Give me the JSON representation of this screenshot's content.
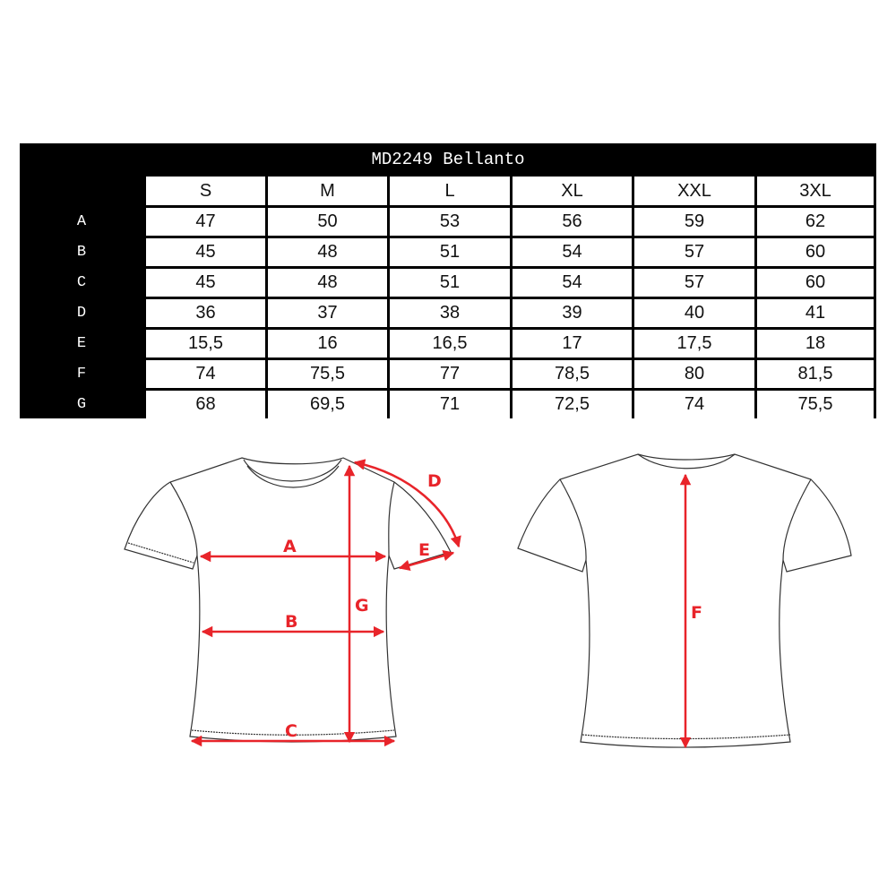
{
  "title": "MD2249 Bellanto",
  "sizes": [
    "S",
    "M",
    "L",
    "XL",
    "XXL",
    "3XL"
  ],
  "rows": [
    {
      "label": "A",
      "values": [
        "47",
        "50",
        "53",
        "56",
        "59",
        "62"
      ]
    },
    {
      "label": "B",
      "values": [
        "45",
        "48",
        "51",
        "54",
        "57",
        "60"
      ]
    },
    {
      "label": "C",
      "values": [
        "45",
        "48",
        "51",
        "54",
        "57",
        "60"
      ]
    },
    {
      "label": "D",
      "values": [
        "36",
        "37",
        "38",
        "39",
        "40",
        "41"
      ]
    },
    {
      "label": "E",
      "values": [
        "15,5",
        "16",
        "16,5",
        "17",
        "17,5",
        "18"
      ]
    },
    {
      "label": "F",
      "values": [
        "74",
        "75,5",
        "77",
        "78,5",
        "80",
        "81,5"
      ]
    },
    {
      "label": "G",
      "values": [
        "68",
        "69,5",
        "71",
        "72,5",
        "74",
        "75,5"
      ]
    }
  ],
  "diagram": {
    "front_labels": {
      "A": "A",
      "B": "B",
      "C": "C",
      "D": "D",
      "E": "E",
      "G": "G"
    },
    "back_labels": {
      "F": "F"
    },
    "arrow_color": "#e8242a"
  }
}
